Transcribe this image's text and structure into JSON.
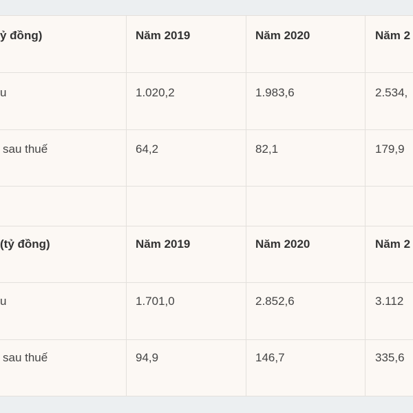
{
  "table": {
    "sections": [
      {
        "header": [
          "ỷ đồng)",
          "Năm 2019",
          "Năm 2020",
          "Năm 2"
        ],
        "rows": [
          [
            "u",
            "1.020,2",
            "1.983,6",
            "2.534,"
          ],
          [
            "sau thuế",
            "64,2",
            "82,1",
            "179,9"
          ]
        ]
      },
      {
        "header": [
          "(tỷ đồng)",
          "Năm 2019",
          "Năm 2020",
          "Năm 2"
        ],
        "rows": [
          [
            "u",
            "1.701,0",
            "2.852,6",
            "3.112"
          ],
          [
            "sau thuế",
            "94,9",
            "146,7",
            "335,6"
          ]
        ]
      }
    ]
  }
}
